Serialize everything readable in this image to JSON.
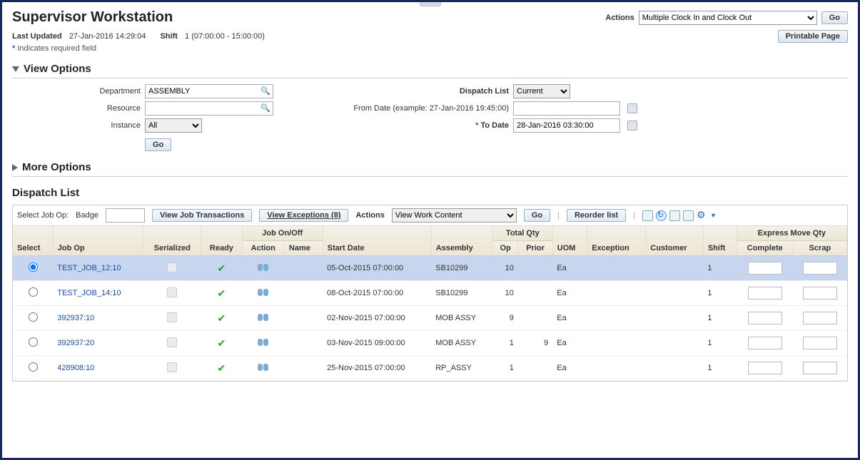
{
  "header": {
    "title": "Supervisor Workstation",
    "actions_label": "Actions",
    "action_selected": "Multiple Clock In and Clock Out",
    "go_label": "Go",
    "printable_label": "Printable Page",
    "last_updated_label": "Last Updated",
    "last_updated_value": "27-Jan-2016 14:29:04",
    "shift_label": "Shift",
    "shift_value": "1 (07:00:00 - 15:00:00)",
    "required_note": "Indicates required field"
  },
  "view_options": {
    "title": "View Options",
    "department_label": "Department",
    "department_value": "ASSEMBLY",
    "resource_label": "Resource",
    "resource_value": "",
    "instance_label": "Instance",
    "instance_value": "All",
    "dispatch_list_label": "Dispatch List",
    "dispatch_list_value": "Current",
    "from_date_label": "From Date (example: 27-Jan-2016 19:45:00)",
    "from_date_value": "",
    "to_date_label": "To Date",
    "to_date_value": "28-Jan-2016 03:30:00",
    "go_label": "Go"
  },
  "more_options_title": "More Options",
  "dispatch": {
    "title": "Dispatch List",
    "toolbar": {
      "select_job_label": "Select Job Op:",
      "badge_label": "Badge",
      "view_transactions": "View Job Transactions",
      "view_exceptions": "View Exceptions (8)",
      "actions_label": "Actions",
      "actions_value": "View Work Content",
      "go_label": "Go",
      "reorder_label": "Reorder list"
    },
    "columns": {
      "select": "Select",
      "job_op": "Job Op",
      "serialized": "Serialized",
      "ready": "Ready",
      "job_onoff": "Job On/Off",
      "action": "Action",
      "name": "Name",
      "start_date": "Start Date",
      "assembly": "Assembly",
      "total_qty": "Total Qty",
      "op": "Op",
      "prior": "Prior",
      "uom": "UOM",
      "exception": "Exception",
      "customer": "Customer",
      "shift": "Shift",
      "express": "Express Move Qty",
      "complete": "Complete",
      "scrap": "Scrap"
    },
    "rows": [
      {
        "selected": true,
        "job_op": "TEST_JOB_12:10",
        "start_date": "05-Oct-2015 07:00:00",
        "assembly": "SB10299",
        "op": "10",
        "prior": "",
        "uom": "Ea",
        "shift": "1"
      },
      {
        "selected": false,
        "job_op": "TEST_JOB_14:10",
        "start_date": "08-Oct-2015 07:00:00",
        "assembly": "SB10299",
        "op": "10",
        "prior": "",
        "uom": "Ea",
        "shift": "1"
      },
      {
        "selected": false,
        "job_op": "392937:10",
        "start_date": "02-Nov-2015 07:00:00",
        "assembly": "MOB ASSY",
        "op": "9",
        "prior": "",
        "uom": "Ea",
        "shift": "1"
      },
      {
        "selected": false,
        "job_op": "392937:20",
        "start_date": "03-Nov-2015 09:00:00",
        "assembly": "MOB ASSY",
        "op": "1",
        "prior": "9",
        "uom": "Ea",
        "shift": "1"
      },
      {
        "selected": false,
        "job_op": "428908:10",
        "start_date": "25-Nov-2015 07:00:00",
        "assembly": "RP_ASSY",
        "op": "1",
        "prior": "",
        "uom": "Ea",
        "shift": "1"
      }
    ]
  }
}
